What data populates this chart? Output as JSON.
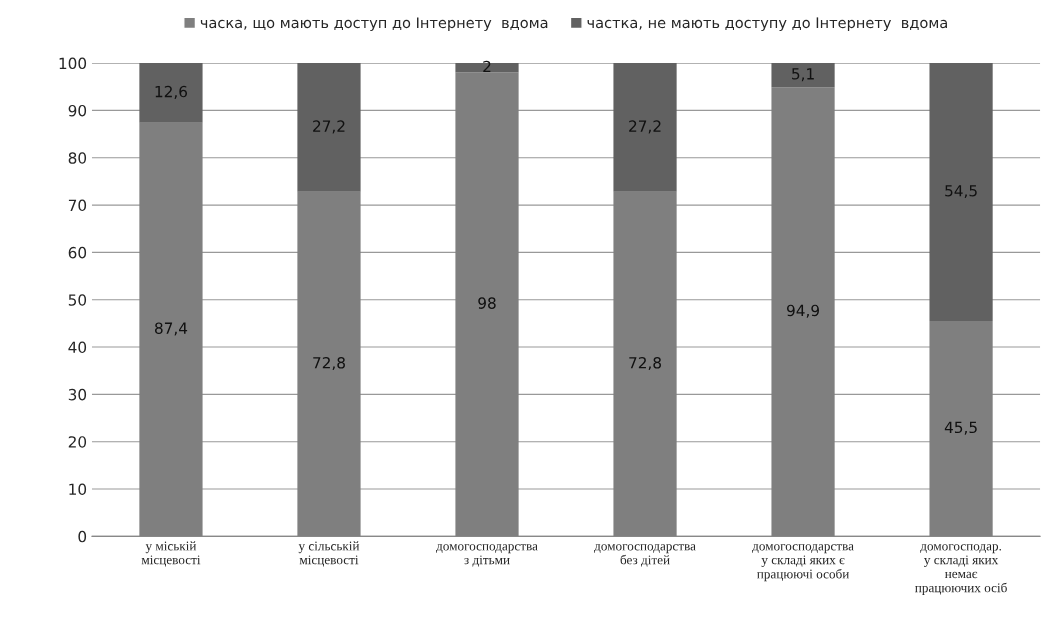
{
  "chart_data": {
    "type": "bar",
    "stacked": true,
    "categories": [
      "у міській\nмісцевості",
      "у сільській\nмісцевості",
      "домогосподарства\nз дітьми",
      "домогосподарства\nбез дітей",
      "домогосподарства\nу складі яких є\nпрацюючі особи",
      "домогосподар.\nу складі яких\nнемає\nпрацюючих осіб"
    ],
    "series": [
      {
        "name": "часка, що мають доступ до Інтернету  вдома",
        "color": "#7f7f7f",
        "values": [
          87.4,
          72.8,
          98,
          72.8,
          94.9,
          45.5
        ],
        "value_labels": [
          "87,4",
          "72,8",
          "98",
          "72,8",
          "94,9",
          "45,5"
        ]
      },
      {
        "name": "частка, не мають доступу до Інтернету  вдома",
        "color": "#616161",
        "values": [
          12.6,
          27.2,
          2,
          27.2,
          5.1,
          54.5
        ],
        "value_labels": [
          "12,6",
          "27,2",
          "2",
          "27,2",
          "5,1",
          "54,5"
        ]
      }
    ],
    "ylim": [
      0,
      100
    ],
    "yticks": [
      0,
      10,
      20,
      30,
      40,
      50,
      60,
      70,
      80,
      90,
      100
    ],
    "grid": "y",
    "legend": "top"
  }
}
